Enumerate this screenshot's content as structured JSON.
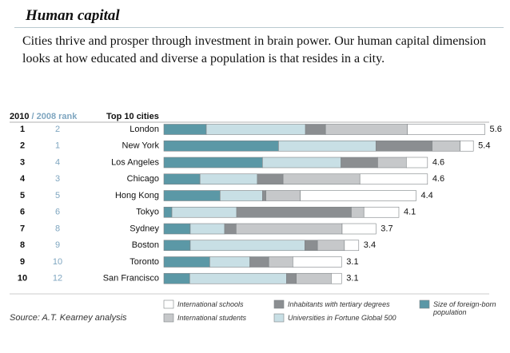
{
  "header": {
    "title": "Human capital",
    "text": "Cities thrive and prosper through investment in brain power. Our human capital dimension looks at how educated and diverse a population is that resides in a city."
  },
  "chart_data": {
    "type": "bar",
    "orientation": "horizontal",
    "stacked": true,
    "rank_header": [
      "2010",
      "/ 2008 rank"
    ],
    "categories_header": "Top 10 cities",
    "categories": [
      "London",
      "New York",
      "Los Angeles",
      "Chicago",
      "Hong Kong",
      "Tokyo",
      "Sydney",
      "Boston",
      "Toronto",
      "San Francisco"
    ],
    "rank_2010": [
      1,
      2,
      3,
      4,
      5,
      6,
      7,
      8,
      9,
      10
    ],
    "rank_2008": [
      2,
      1,
      4,
      3,
      5,
      6,
      8,
      9,
      10,
      12
    ],
    "series": [
      {
        "name": "Size of foreign-born population",
        "color": "#5b98a6",
        "values": [
          0.74,
          2.0,
          1.72,
          0.63,
          0.98,
          0.14,
          0.46,
          0.46,
          0.8,
          0.45
        ]
      },
      {
        "name": "Universities in Fortune Global 500",
        "color": "#c8dfe5",
        "values": [
          1.73,
          1.7,
          1.37,
          1.0,
          0.74,
          1.13,
          0.6,
          2.0,
          0.7,
          1.69
        ]
      },
      {
        "name": "Inhabitants with tertiary degrees",
        "color": "#8b8e91",
        "values": [
          0.35,
          0.98,
          0.64,
          0.45,
          0.06,
          2.0,
          0.2,
          0.22,
          0.33,
          0.17
        ]
      },
      {
        "name": "International students",
        "color": "#c6c8ca",
        "values": [
          1.43,
          0.49,
          0.5,
          1.34,
          0.6,
          0.22,
          1.85,
          0.47,
          0.42,
          0.61
        ]
      },
      {
        "name": "International schools",
        "color": "#ffffff",
        "values": [
          1.35,
          0.23,
          0.37,
          1.18,
          2.02,
          0.61,
          0.59,
          0.25,
          0.85,
          0.18
        ]
      }
    ],
    "totals": [
      5.6,
      5.4,
      4.6,
      4.6,
      4.4,
      4.1,
      3.7,
      3.4,
      3.1,
      3.1
    ],
    "source": "Source: A.T. Kearney analysis"
  }
}
